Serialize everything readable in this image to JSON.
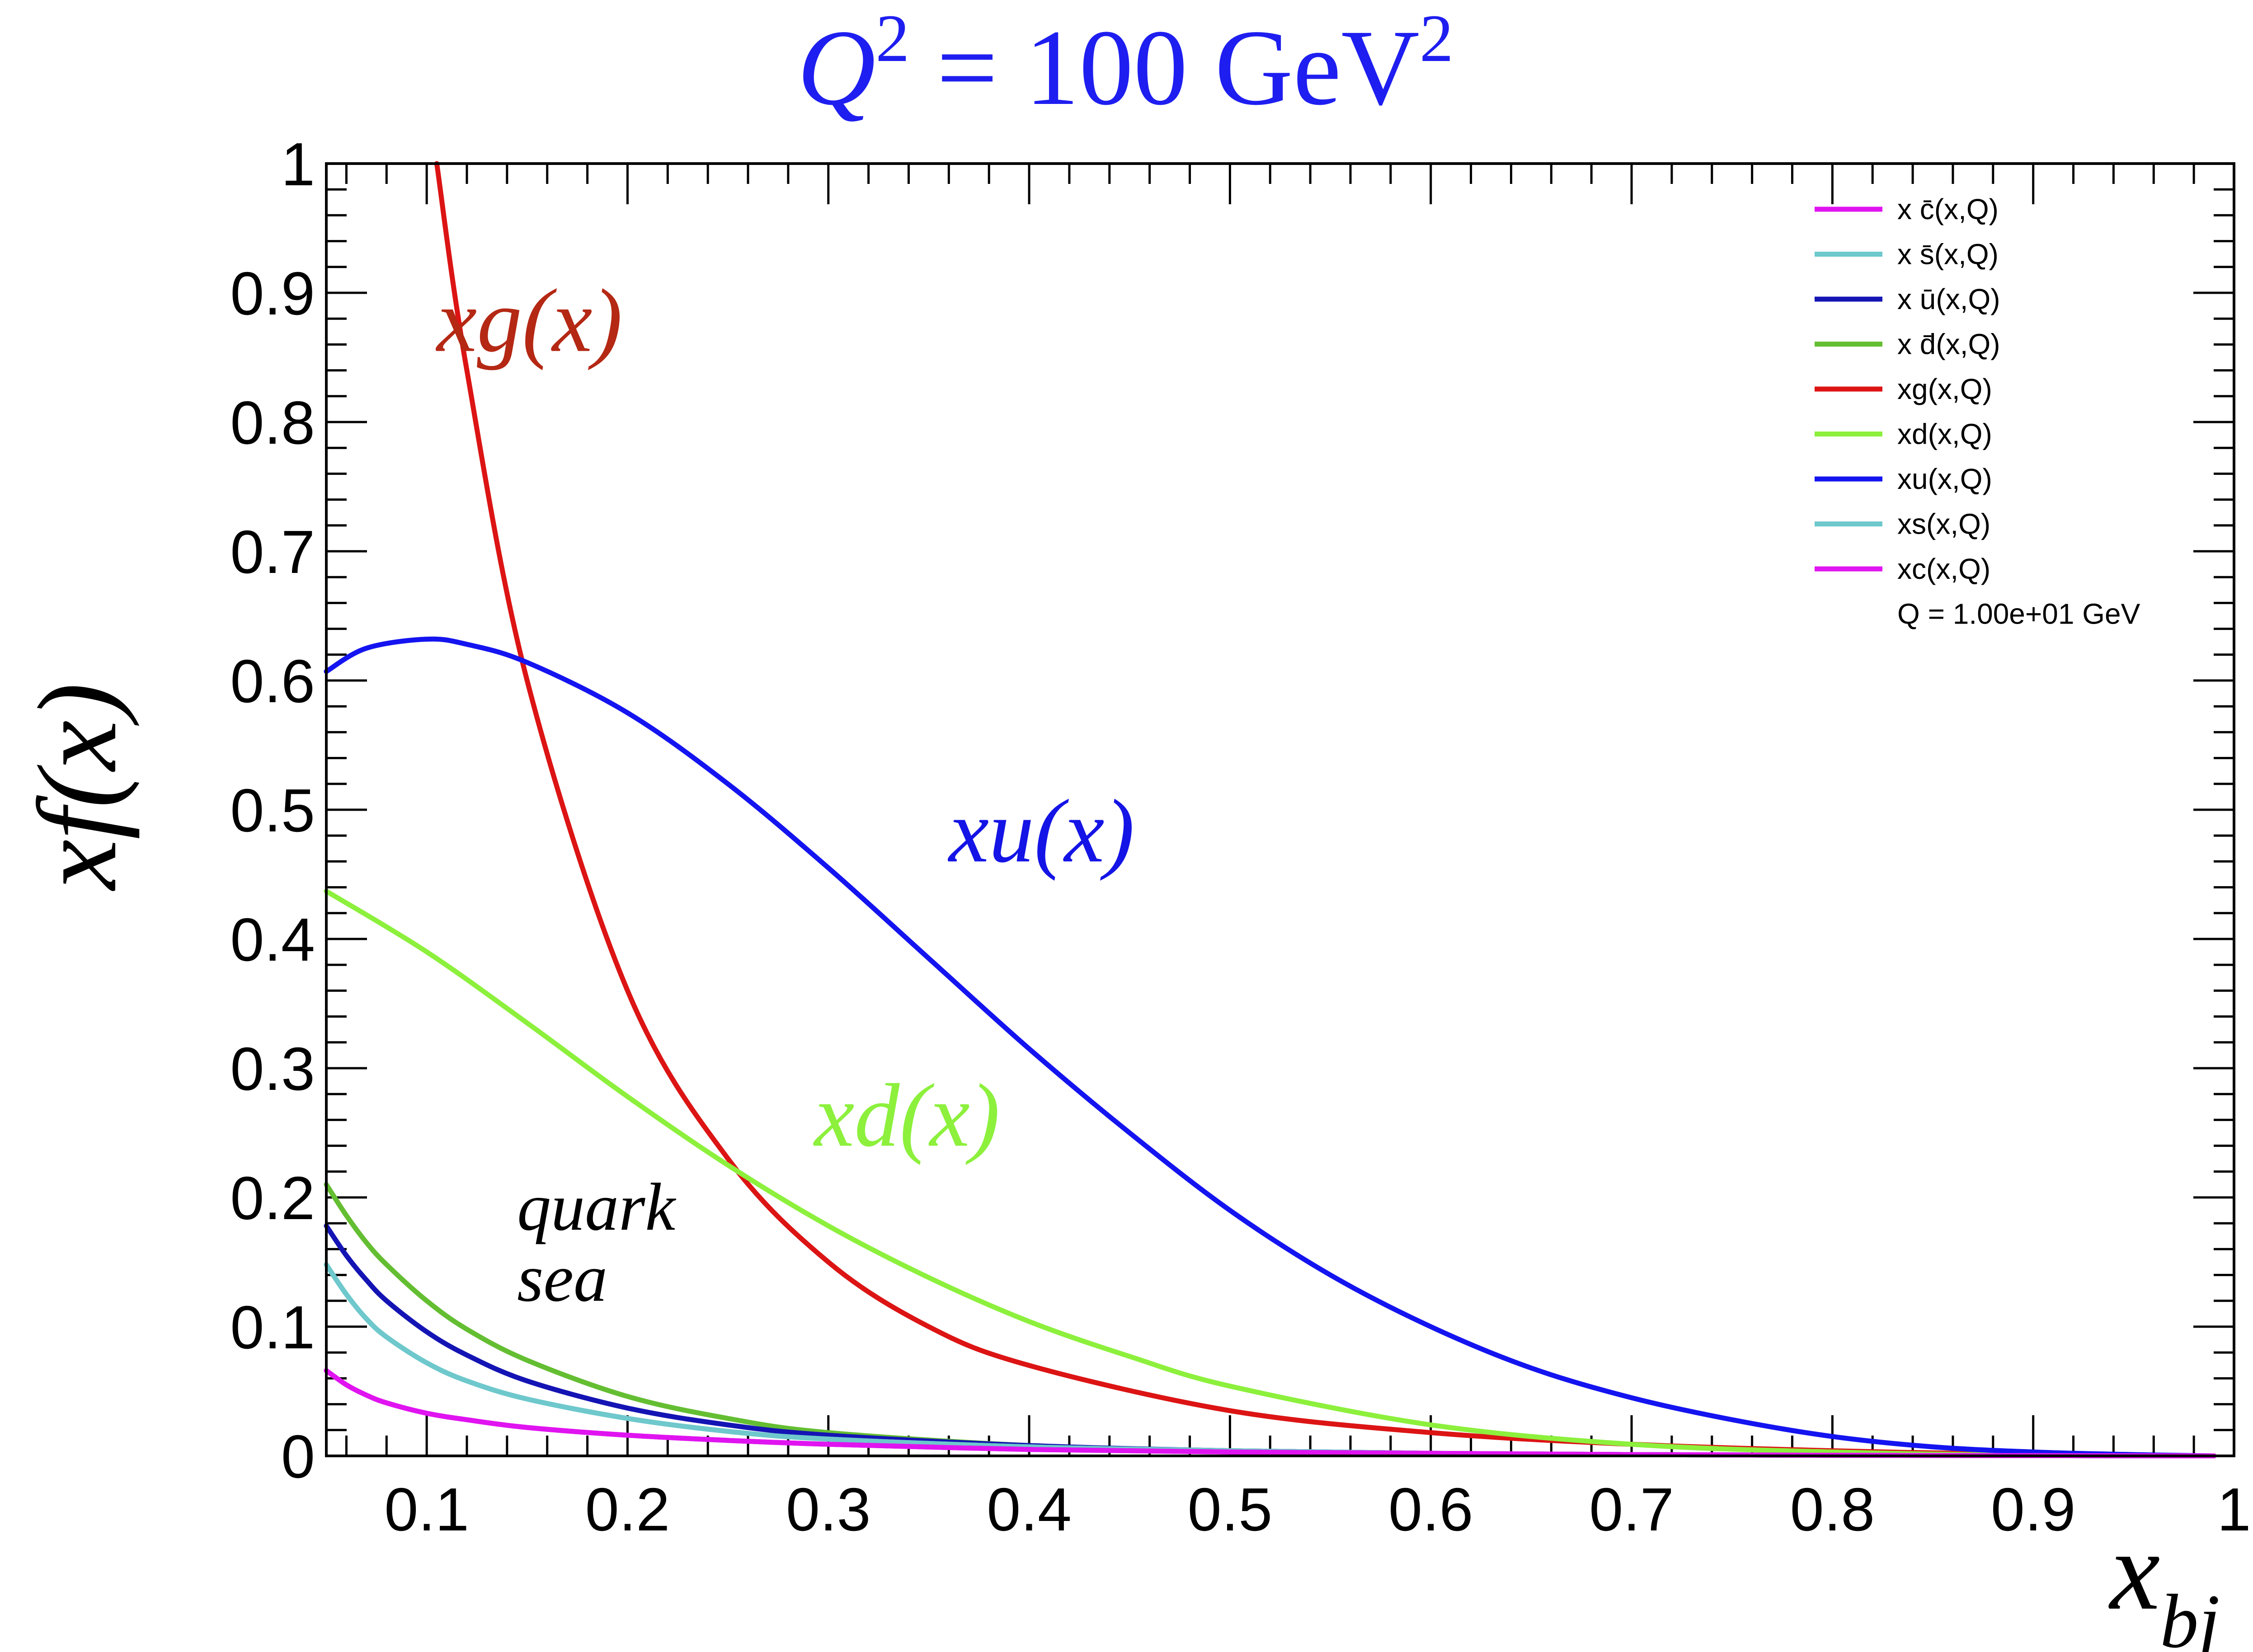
{
  "chart_data": {
    "type": "line",
    "title": "Q² = 100 GeV²",
    "xlabel": "x_bj",
    "ylabel": "xf(x)",
    "xlim": [
      0.05,
      1.0
    ],
    "ylim": [
      0,
      1.0
    ],
    "x_ticks": [
      {
        "value": 0.1,
        "label": "0.1"
      },
      {
        "value": 0.2,
        "label": "0.2"
      },
      {
        "value": 0.3,
        "label": "0.3"
      },
      {
        "value": 0.4,
        "label": "0.4"
      },
      {
        "value": 0.5,
        "label": "0.5"
      },
      {
        "value": 0.6,
        "label": "0.6"
      },
      {
        "value": 0.7,
        "label": "0.7"
      },
      {
        "value": 0.8,
        "label": "0.8"
      },
      {
        "value": 0.9,
        "label": "0.9"
      },
      {
        "value": 1.0,
        "label": "1"
      }
    ],
    "y_ticks": [
      {
        "value": 0,
        "label": "0"
      },
      {
        "value": 0.1,
        "label": "0.1"
      },
      {
        "value": 0.2,
        "label": "0.2"
      },
      {
        "value": 0.3,
        "label": "0.3"
      },
      {
        "value": 0.4,
        "label": "0.4"
      },
      {
        "value": 0.5,
        "label": "0.5"
      },
      {
        "value": 0.6,
        "label": "0.6"
      },
      {
        "value": 0.7,
        "label": "0.7"
      },
      {
        "value": 0.8,
        "label": "0.8"
      },
      {
        "value": 0.9,
        "label": "0.9"
      },
      {
        "value": 1.0,
        "label": "1"
      }
    ],
    "legend_position": "top-right",
    "legend_note": "Q = 1.00e+01 GeV",
    "series": [
      {
        "key": "cbar",
        "name": "x c̄(x,Q)",
        "color": "#e014f0",
        "x": [
          0.05,
          0.06,
          0.07,
          0.08,
          0.1,
          0.12,
          0.15,
          0.2,
          0.25,
          0.3,
          0.4,
          0.5,
          0.6,
          0.7,
          0.8,
          0.9,
          0.99
        ],
        "y": [
          0.066,
          0.055,
          0.047,
          0.041,
          0.033,
          0.028,
          0.022,
          0.016,
          0.012,
          0.009,
          0.005,
          0.003,
          0.002,
          0.001,
          0.0005,
          0.0002,
          0
        ]
      },
      {
        "key": "sbar",
        "name": "x s̄(x,Q)",
        "color": "#6ec8cc",
        "x": [
          0.05,
          0.06,
          0.07,
          0.08,
          0.1,
          0.12,
          0.15,
          0.2,
          0.25,
          0.3,
          0.4,
          0.5,
          0.6,
          0.7,
          0.8,
          0.9,
          0.99
        ],
        "y": [
          0.148,
          0.125,
          0.106,
          0.092,
          0.072,
          0.058,
          0.044,
          0.029,
          0.019,
          0.013,
          0.007,
          0.004,
          0.002,
          0.001,
          0.0005,
          0.0002,
          0
        ]
      },
      {
        "key": "ubar",
        "name": "x ū(x,Q)",
        "color": "#1414b4",
        "x": [
          0.05,
          0.06,
          0.07,
          0.08,
          0.1,
          0.12,
          0.15,
          0.2,
          0.25,
          0.3,
          0.4,
          0.5,
          0.6,
          0.7,
          0.8,
          0.9,
          0.99
        ],
        "y": [
          0.178,
          0.155,
          0.136,
          0.12,
          0.096,
          0.078,
          0.058,
          0.037,
          0.024,
          0.016,
          0.008,
          0.004,
          0.002,
          0.001,
          0.0005,
          0.0002,
          0
        ]
      },
      {
        "key": "dbar",
        "name": "x d̄(x,Q)",
        "color": "#64be32",
        "x": [
          0.05,
          0.06,
          0.07,
          0.08,
          0.1,
          0.12,
          0.15,
          0.2,
          0.25,
          0.3,
          0.4,
          0.5,
          0.6,
          0.7,
          0.8,
          0.9,
          0.99
        ],
        "y": [
          0.21,
          0.186,
          0.165,
          0.148,
          0.12,
          0.098,
          0.074,
          0.046,
          0.029,
          0.018,
          0.008,
          0.004,
          0.002,
          0.001,
          0.0005,
          0.0002,
          0
        ]
      },
      {
        "key": "g",
        "name": "xg(x,Q)",
        "color": "#dc1414",
        "x": [
          0.105,
          0.12,
          0.15,
          0.2,
          0.25,
          0.3,
          0.35,
          0.4,
          0.5,
          0.6,
          0.7,
          0.8,
          0.9,
          0.99
        ],
        "y": [
          1.0,
          0.84,
          0.6,
          0.36,
          0.23,
          0.15,
          0.1,
          0.07,
          0.035,
          0.018,
          0.009,
          0.004,
          0.001,
          0
        ]
      },
      {
        "key": "d",
        "name": "xd(x,Q)",
        "color": "#8cf03c",
        "x": [
          0.05,
          0.1,
          0.15,
          0.2,
          0.25,
          0.3,
          0.35,
          0.4,
          0.45,
          0.5,
          0.6,
          0.7,
          0.8,
          0.9,
          0.99
        ],
        "y": [
          0.437,
          0.39,
          0.335,
          0.278,
          0.225,
          0.178,
          0.138,
          0.104,
          0.077,
          0.054,
          0.024,
          0.009,
          0.003,
          0.0005,
          0
        ]
      },
      {
        "key": "u",
        "name": "xu(x,Q)",
        "color": "#1414f0",
        "x": [
          0.05,
          0.07,
          0.1,
          0.12,
          0.15,
          0.2,
          0.25,
          0.3,
          0.35,
          0.4,
          0.45,
          0.5,
          0.55,
          0.6,
          0.65,
          0.7,
          0.75,
          0.8,
          0.85,
          0.9,
          0.95,
          0.99
        ],
        "y": [
          0.607,
          0.625,
          0.632,
          0.628,
          0.614,
          0.575,
          0.52,
          0.455,
          0.385,
          0.315,
          0.25,
          0.19,
          0.14,
          0.1,
          0.068,
          0.045,
          0.028,
          0.015,
          0.007,
          0.003,
          0.001,
          0
        ]
      },
      {
        "key": "s",
        "name": "xs(x,Q)",
        "color": "#6ec8cc",
        "x": [
          0.05,
          0.06,
          0.07,
          0.08,
          0.1,
          0.12,
          0.15,
          0.2,
          0.25,
          0.3,
          0.4,
          0.5,
          0.6,
          0.7,
          0.8,
          0.9,
          0.99
        ],
        "y": [
          0.148,
          0.125,
          0.106,
          0.092,
          0.072,
          0.058,
          0.044,
          0.029,
          0.019,
          0.013,
          0.007,
          0.004,
          0.002,
          0.001,
          0.0005,
          0.0002,
          0
        ]
      },
      {
        "key": "c",
        "name": "xc(x,Q)",
        "color": "#e014f0",
        "x": [
          0.05,
          0.06,
          0.07,
          0.08,
          0.1,
          0.12,
          0.15,
          0.2,
          0.25,
          0.3,
          0.4,
          0.5,
          0.6,
          0.7,
          0.8,
          0.9,
          0.99
        ],
        "y": [
          0.066,
          0.055,
          0.047,
          0.041,
          0.033,
          0.028,
          0.022,
          0.016,
          0.012,
          0.009,
          0.005,
          0.003,
          0.002,
          0.001,
          0.0005,
          0.0002,
          0
        ]
      }
    ],
    "legend_order": [
      "cbar",
      "sbar",
      "ubar",
      "dbar",
      "g",
      "d",
      "u",
      "s",
      "c"
    ],
    "draw_order": [
      "dbar",
      "ubar",
      "sbar",
      "g",
      "d",
      "u",
      "s",
      "c",
      "cbar"
    ],
    "annotations": [
      {
        "key": "xg",
        "text": "xg(x)",
        "color": "#b42814",
        "x": 0.105,
        "y": 0.855
      },
      {
        "key": "xu",
        "text": "xu(x)",
        "color": "#1414e6",
        "x": 0.36,
        "y": 0.46
      },
      {
        "key": "xd",
        "text": "xd(x)",
        "color": "#8cf03c",
        "x": 0.293,
        "y": 0.24
      },
      {
        "key": "quark",
        "text": "quark",
        "color": "#000000",
        "x": 0.145,
        "y": 0.175
      },
      {
        "key": "sea",
        "text": "sea",
        "color": "#000000",
        "x": 0.145,
        "y": 0.12
      }
    ]
  }
}
